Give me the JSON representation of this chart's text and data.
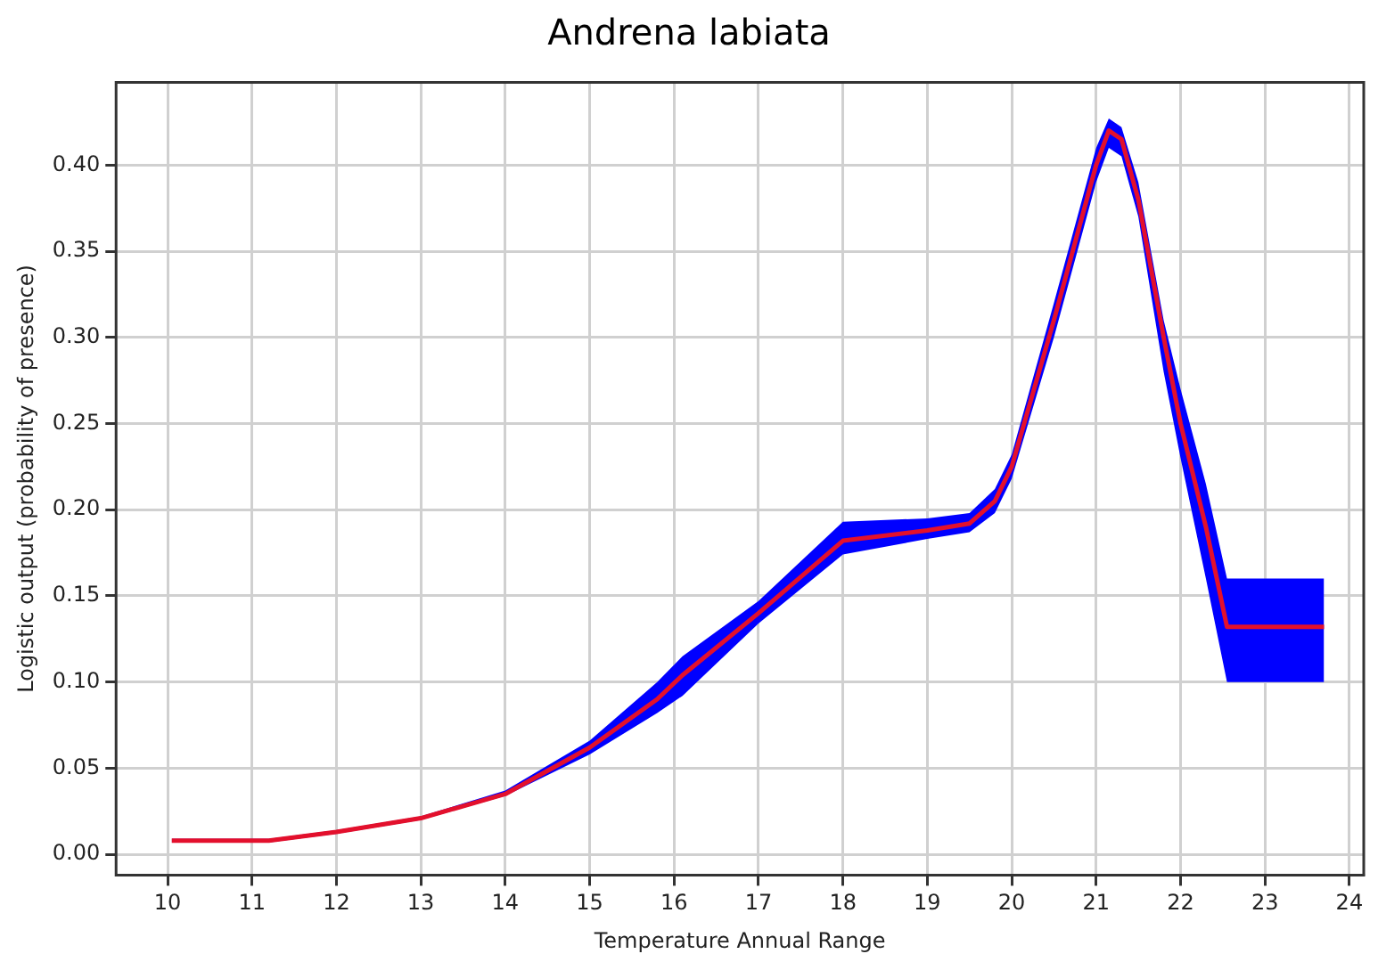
{
  "chart_data": {
    "type": "line",
    "title": "Andrena labiata",
    "xlabel": "Temperature Annual Range",
    "ylabel": "Logistic output (probability of presence)",
    "xlim": [
      9.39,
      24.17
    ],
    "xticks": [
      10,
      11,
      12,
      13,
      14,
      15,
      16,
      17,
      18,
      19,
      20,
      21,
      22,
      23,
      24
    ],
    "ylim": [
      -0.012,
      0.448
    ],
    "yticks": [
      {
        "value": 0,
        "label": "0.00"
      },
      {
        "value": 0.05,
        "label": "0.05"
      },
      {
        "value": 0.1,
        "label": "0.10"
      },
      {
        "value": 0.15,
        "label": "0.15"
      },
      {
        "value": 0.2,
        "label": "0.20"
      },
      {
        "value": 0.25,
        "label": "0.25"
      },
      {
        "value": 0.3,
        "label": "0.30"
      },
      {
        "value": 0.35,
        "label": "0.35"
      },
      {
        "value": 0.4,
        "label": "0.40"
      }
    ],
    "grid": true,
    "legend": false,
    "series": [
      {
        "color": "#e3102c",
        "x": [
          10.05,
          11.2,
          12,
          13,
          14,
          15,
          15.8,
          16.1,
          17,
          18,
          19,
          19.5,
          19.8,
          20,
          20.5,
          21,
          21.15,
          21.3,
          21.5,
          21.8,
          22,
          22.3,
          22.55,
          23.7
        ],
        "values": [
          0.008,
          0.008,
          0.013,
          0.021,
          0.035,
          0.062,
          0.09,
          0.104,
          0.14,
          0.182,
          0.188,
          0.192,
          0.205,
          0.225,
          0.31,
          0.4,
          0.42,
          0.415,
          0.38,
          0.3,
          0.25,
          0.19,
          0.132,
          0.132
        ],
        "lower": [
          0.007,
          0.007,
          0.012,
          0.02,
          0.034,
          0.058,
          0.082,
          0.092,
          0.134,
          0.174,
          0.183,
          0.187,
          0.198,
          0.218,
          0.3,
          0.39,
          0.41,
          0.405,
          0.37,
          0.28,
          0.23,
          0.16,
          0.1,
          0.1
        ],
        "upper": [
          0.009,
          0.009,
          0.014,
          0.022,
          0.037,
          0.066,
          0.1,
          0.115,
          0.147,
          0.193,
          0.195,
          0.198,
          0.212,
          0.232,
          0.32,
          0.41,
          0.427,
          0.422,
          0.39,
          0.31,
          0.27,
          0.215,
          0.16,
          0.16
        ]
      }
    ]
  }
}
